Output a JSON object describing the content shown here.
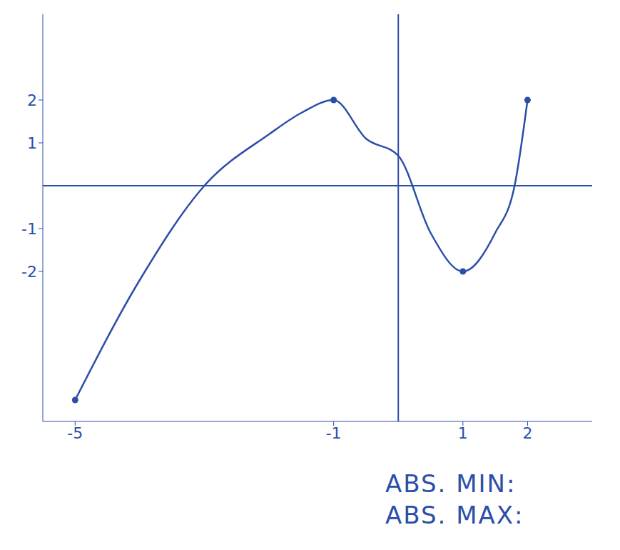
{
  "chart_data": {
    "type": "line",
    "x": [
      -5,
      -4,
      -3,
      -2,
      -1.5,
      -1,
      -0.5,
      0,
      0.5,
      1,
      1.5,
      1.8,
      2
    ],
    "values": [
      -5,
      -2.2,
      0,
      1.2,
      1.7,
      2,
      1.1,
      0.7,
      -1.1,
      -2,
      -1.1,
      0,
      2
    ],
    "marked_points": {
      "x": [
        -5,
        -1,
        1,
        2
      ],
      "y": [
        -5,
        2,
        -2,
        2
      ]
    },
    "color": "#2b4fa8",
    "marker": "circle",
    "line_style": "solid",
    "xlim": [
      -5.5,
      3
    ],
    "ylim": [
      -5.5,
      4
    ],
    "xticks": [
      -5,
      -1,
      1,
      2
    ],
    "yticks": [
      -2,
      -1,
      1,
      2
    ],
    "grid": false,
    "annotations": [
      "ABS. MIN:",
      "ABS. MAX:"
    ]
  }
}
